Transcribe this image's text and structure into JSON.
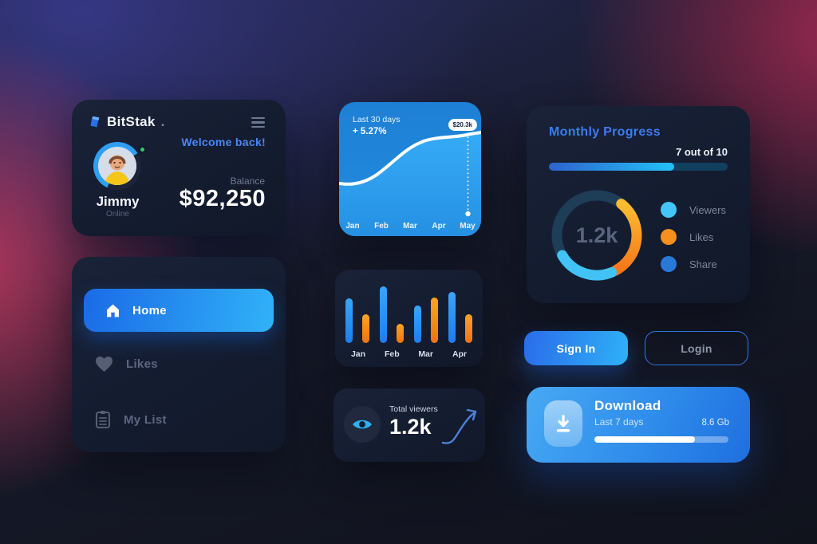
{
  "colors": {
    "accent_blue": "#3d7bf0",
    "bright_cyan": "#2fb3f7",
    "orange": "#f78f1e",
    "light_blue": "#45c5f7",
    "share_blue": "#2979d9",
    "card_bg": "#161e31",
    "success_green": "#2ecc71"
  },
  "account_card": {
    "brand": "BitStak",
    "brand_suffix": ".",
    "menu_icon": "hamburger-menu-icon",
    "welcome": "Welcome back!",
    "user_name": "Jimmy",
    "user_status": "Online",
    "balance_label": "Balance",
    "balance_value": "$92,250"
  },
  "line_chart_card": {
    "period_label": "Last 30 days",
    "trend": "+ 5.27%",
    "peak_badge": "$20.3k",
    "chart_data": {
      "type": "area",
      "x": [
        "Jan",
        "Feb",
        "Mar",
        "Apr",
        "May"
      ],
      "values": [
        4.5,
        5.5,
        11.0,
        17.5,
        20.3
      ],
      "highlight": {
        "x": "May",
        "label": "$20.3k"
      },
      "line_color": "#ffffff",
      "grid": false
    }
  },
  "progress_card": {
    "title": "Monthly Progress",
    "progress_label": "7 out of 10",
    "progress_value": 7,
    "progress_max": 10,
    "donut": {
      "center_label": "1.2k",
      "chart_data": {
        "type": "donut",
        "segments": [
          {
            "name": "Likes",
            "color": "#f78f1e",
            "arc_deg": 114
          },
          {
            "name": "Viewers",
            "color": "#45c5f7",
            "arc_deg": 82
          },
          {
            "name": "Share",
            "color": "#1e3d57",
            "arc_deg": 164
          }
        ]
      }
    },
    "legend": [
      {
        "label": "Viewers",
        "color": "#45c5f7"
      },
      {
        "label": "Likes",
        "color": "#f78f1e"
      },
      {
        "label": "Share",
        "color": "#2979d9"
      }
    ]
  },
  "nav_card": {
    "items": [
      {
        "label": "Home",
        "icon": "home-icon",
        "active": true
      },
      {
        "label": "Likes",
        "icon": "heart-icon",
        "active": false
      },
      {
        "label": "My List",
        "icon": "list-icon",
        "active": false
      }
    ]
  },
  "bar_chart_card": {
    "chart_data": {
      "type": "bar",
      "categories": [
        "Jan",
        "Feb",
        "Mar",
        "Apr"
      ],
      "series": [
        {
          "name": "primary",
          "color": "#2492f5",
          "values": [
            56,
            71,
            47,
            64
          ]
        },
        {
          "name": "secondary",
          "color": "#f78f1e",
          "values": [
            36,
            24,
            57,
            36
          ]
        }
      ],
      "unit": "relative"
    }
  },
  "viewers_card": {
    "label": "Total viewers",
    "value": "1.2k",
    "icon": "eye-icon",
    "trend_icon": "trend-up-arrow-icon"
  },
  "auth": {
    "sign_in_label": "Sign In",
    "login_label": "Login"
  },
  "download_card": {
    "title": "Download",
    "subtitle": "Last 7 days",
    "size": "8.6 Gb",
    "progress_pct": 75,
    "icon": "download-icon"
  }
}
